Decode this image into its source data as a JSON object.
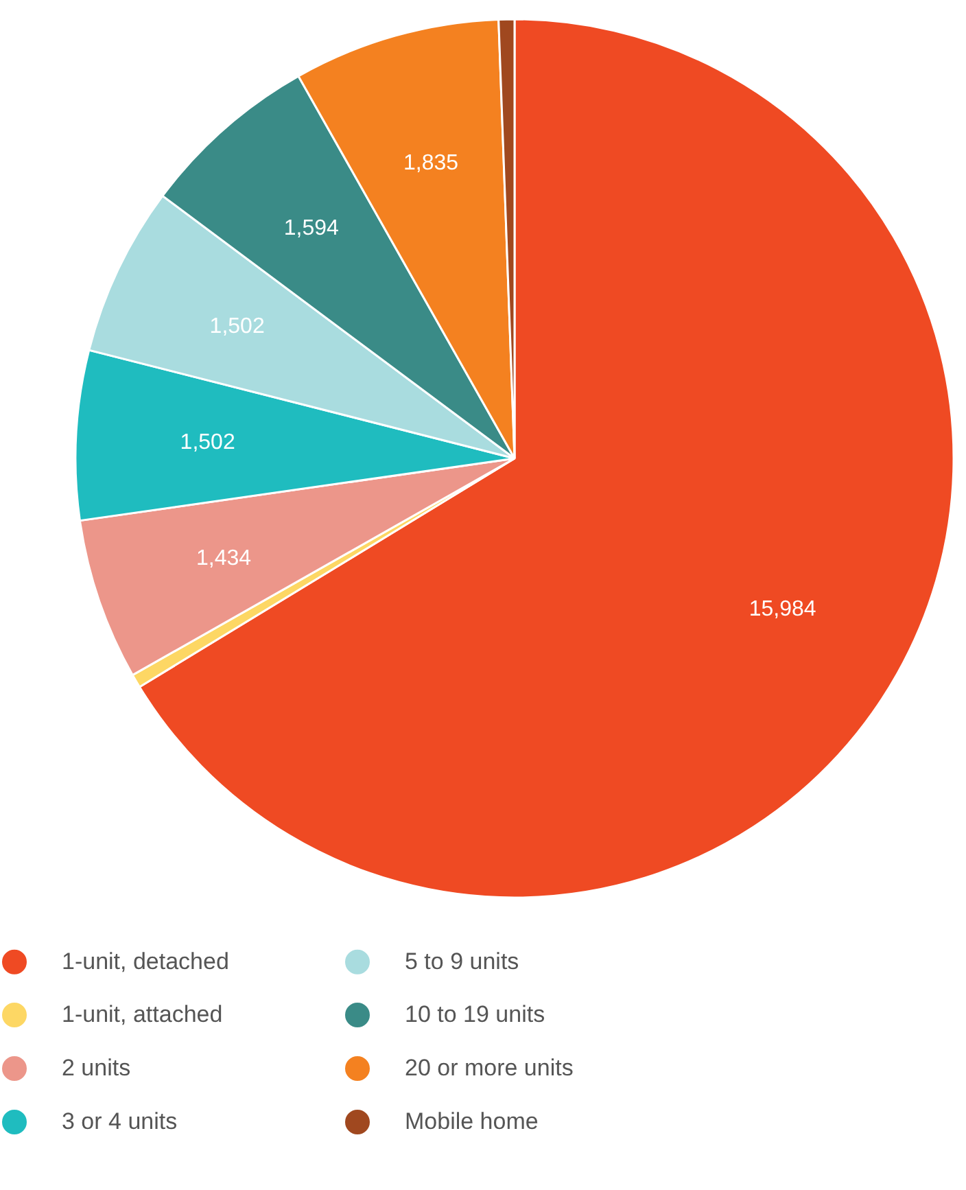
{
  "chart_data": {
    "type": "pie",
    "categories": [
      "1-unit, detached",
      "1-unit, attached",
      "2 units",
      "3 or 4 units",
      "5 to 9 units",
      "10 to 19 units",
      "20 or more units",
      "Mobile home"
    ],
    "values": [
      15984,
      120,
      1434,
      1502,
      1502,
      1594,
      1835,
      140
    ],
    "colors": [
      "#ef4a23",
      "#fdd764",
      "#ec968a",
      "#1fbcbf",
      "#a9dcdf",
      "#3a8b87",
      "#f48120",
      "#a0481f"
    ],
    "value_labels": [
      "15,984",
      null,
      "1,434",
      "1,502",
      "1,502",
      "1,594",
      "1,835",
      null
    ],
    "legend": "bottom"
  }
}
